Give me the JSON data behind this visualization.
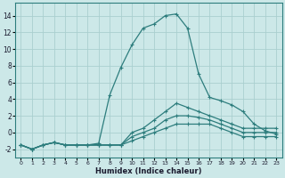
{
  "xlabel": "Humidex (Indice chaleur)",
  "bg_color": "#cce8e8",
  "line_color": "#2d7d7d",
  "grid_color": "#aacfcf",
  "xlim": [
    -0.5,
    23.5
  ],
  "ylim": [
    -3.0,
    15.5
  ],
  "xticks": [
    0,
    1,
    2,
    3,
    4,
    5,
    6,
    7,
    8,
    9,
    10,
    11,
    12,
    13,
    14,
    15,
    16,
    17,
    18,
    19,
    20,
    21,
    22,
    23
  ],
  "yticks": [
    -2,
    0,
    2,
    4,
    6,
    8,
    10,
    12,
    14
  ],
  "series": [
    {
      "x": [
        0,
        1,
        2,
        3,
        4,
        5,
        6,
        7,
        8,
        9,
        10,
        11,
        12,
        13,
        14,
        15,
        16,
        17,
        18,
        19,
        20,
        21,
        22,
        23
      ],
      "y": [
        -1.5,
        -2.0,
        -1.5,
        -1.2,
        -1.5,
        -1.5,
        -1.5,
        -1.5,
        -1.5,
        -1.5,
        -1.0,
        -0.5,
        0.0,
        0.5,
        1.0,
        1.0,
        1.0,
        1.0,
        0.5,
        0.0,
        -0.5,
        -0.5,
        -0.5,
        -0.5
      ]
    },
    {
      "x": [
        0,
        1,
        2,
        3,
        4,
        5,
        6,
        7,
        8,
        9,
        10,
        11,
        12,
        13,
        14,
        15,
        16,
        17,
        18,
        19,
        20,
        21,
        22,
        23
      ],
      "y": [
        -1.5,
        -2.0,
        -1.5,
        -1.2,
        -1.5,
        -1.5,
        -1.5,
        -1.5,
        -1.5,
        -1.5,
        -0.5,
        0.0,
        0.5,
        1.5,
        2.0,
        2.0,
        1.8,
        1.5,
        1.0,
        0.5,
        0.0,
        0.0,
        0.0,
        0.0
      ]
    },
    {
      "x": [
        0,
        1,
        2,
        3,
        4,
        5,
        6,
        7,
        8,
        9,
        10,
        11,
        12,
        13,
        14,
        15,
        16,
        17,
        18,
        19,
        20,
        21,
        22,
        23
      ],
      "y": [
        -1.5,
        -2.0,
        -1.5,
        -1.2,
        -1.5,
        -1.5,
        -1.5,
        -1.5,
        -1.5,
        -1.5,
        0.0,
        0.5,
        1.5,
        2.5,
        3.5,
        3.0,
        2.5,
        2.0,
        1.5,
        1.0,
        0.5,
        0.5,
        0.5,
        0.5
      ]
    },
    {
      "x": [
        0,
        1,
        2,
        3,
        4,
        5,
        6,
        7,
        8,
        9,
        10,
        11,
        12,
        13,
        14,
        15,
        16,
        17,
        18,
        19,
        20,
        21,
        22,
        23
      ],
      "y": [
        -1.5,
        -2.0,
        -1.5,
        -1.2,
        -1.5,
        -1.5,
        -1.5,
        -1.3,
        4.5,
        7.8,
        10.5,
        12.5,
        13.0,
        14.0,
        14.2,
        12.5,
        7.0,
        4.2,
        3.8,
        3.3,
        2.5,
        1.0,
        0.2,
        -0.2
      ]
    }
  ]
}
